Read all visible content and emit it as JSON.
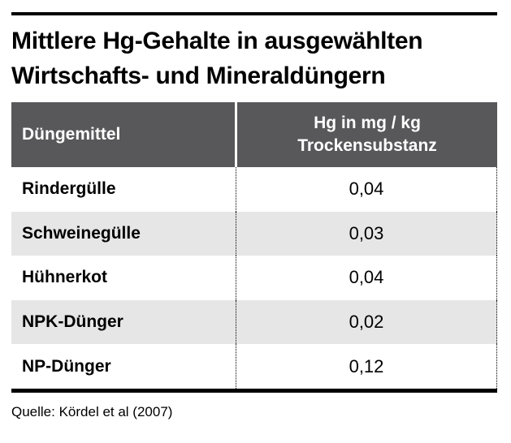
{
  "title": {
    "line1": "Mittlere Hg-Gehalte in ausgewählten",
    "line2": "Wirtschafts- und Mineraldüngern"
  },
  "table": {
    "header": {
      "col1": "Düngemittel",
      "col2_line1": "Hg in mg / kg",
      "col2_line2": "Trockensubstanz"
    },
    "rows": [
      {
        "name": "Rindergülle",
        "value": "0,04"
      },
      {
        "name": "Schweinegülle",
        "value": "0,03"
      },
      {
        "name": "Hühnerkot",
        "value": "0,04"
      },
      {
        "name": "NPK-Dünger",
        "value": "0,02"
      },
      {
        "name": "NP-Dünger",
        "value": "0,12"
      }
    ]
  },
  "source": "Quelle: Kördel et al (2007)",
  "colors": {
    "header_bg": "#58585a",
    "row_alt_bg": "#e6e6e6",
    "rule": "#000000",
    "text": "#000000"
  },
  "chart_data": {
    "type": "table",
    "title": "Mittlere Hg-Gehalte in ausgewählten Wirtschafts- und Mineraldüngern",
    "columns": [
      "Düngemittel",
      "Hg in mg / kg Trockensubstanz"
    ],
    "categories": [
      "Rindergülle",
      "Schweinegülle",
      "Hühnerkot",
      "NPK-Dünger",
      "NP-Dünger"
    ],
    "values": [
      0.04,
      0.03,
      0.04,
      0.02,
      0.12
    ],
    "unit": "mg/kg Trockensubstanz",
    "source": "Quelle: Kördel et al (2007)",
    "layout": {
      "zebra_stripes": true,
      "header_bg": "#58585a",
      "row_alt_bg": "#e6e6e6"
    }
  }
}
